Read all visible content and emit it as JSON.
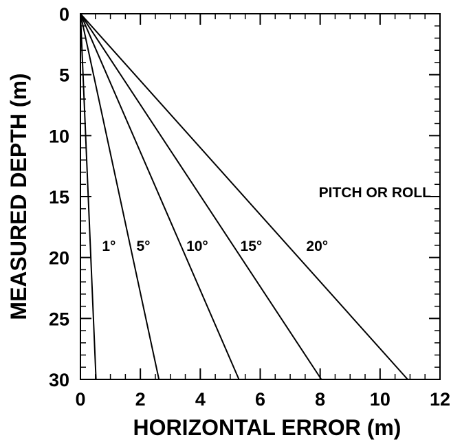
{
  "chart_data": {
    "type": "line",
    "title": "",
    "xlabel": "HORIZONTAL ERROR (m)",
    "ylabel": "MEASURED DEPTH (m)",
    "xlim": [
      0,
      12
    ],
    "ylim": [
      0,
      30
    ],
    "y_inverted": true,
    "x_ticks": [
      0,
      2,
      4,
      6,
      8,
      10,
      12
    ],
    "y_ticks": [
      0,
      5,
      10,
      15,
      20,
      25,
      30
    ],
    "x_tick_labels": [
      "0",
      "2",
      "4",
      "6",
      "8",
      "10",
      "12"
    ],
    "y_tick_labels": [
      "0",
      "5",
      "10",
      "15",
      "20",
      "25",
      "30"
    ],
    "grid": false,
    "legend": "none",
    "annotation": "PITCH OR ROLL",
    "series": [
      {
        "label": "1°",
        "x": [
          0,
          0.52
        ],
        "y": [
          0,
          30
        ],
        "label_at": [
          0.95,
          19
        ]
      },
      {
        "label": "5°",
        "x": [
          0,
          2.62
        ],
        "y": [
          0,
          30
        ],
        "label_at": [
          2.1,
          19
        ]
      },
      {
        "label": "10°",
        "x": [
          0,
          5.29
        ],
        "y": [
          0,
          30
        ],
        "label_at": [
          3.9,
          19
        ]
      },
      {
        "label": "15°",
        "x": [
          0,
          8.04
        ],
        "y": [
          0,
          30
        ],
        "label_at": [
          5.7,
          19
        ]
      },
      {
        "label": "20°",
        "x": [
          0,
          10.92
        ],
        "y": [
          0,
          30
        ],
        "label_at": [
          7.9,
          19
        ]
      }
    ]
  }
}
